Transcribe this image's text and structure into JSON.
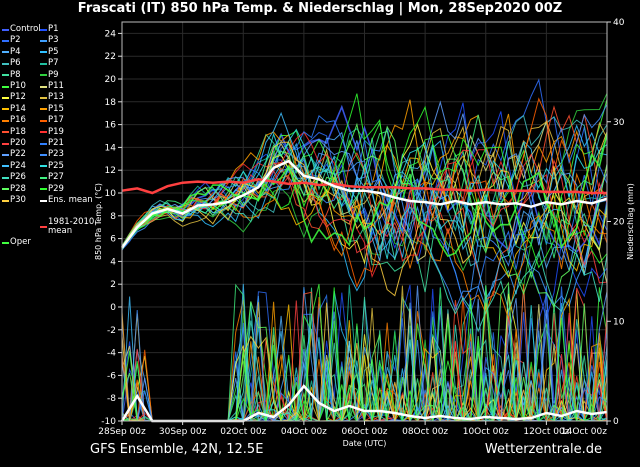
{
  "title": "Frascati  (IT)  850 hPa Temp. & Niederschlag | Mon, 28Sep2020 00Z",
  "footer": {
    "left": "GFS Ensemble, 42N, 12.5E",
    "right": "Wetterzentrale.de"
  },
  "legend": [
    {
      "label": "Control",
      "color": "#4060ff"
    },
    {
      "label": "P1",
      "color": "#2050ff"
    },
    {
      "label": "P2",
      "color": "#3070ff"
    },
    {
      "label": "P3",
      "color": "#40a0ff"
    },
    {
      "label": "P4",
      "color": "#50b0ff"
    },
    {
      "label": "P5",
      "color": "#30c0ff"
    },
    {
      "label": "P6",
      "color": "#40c0c0"
    },
    {
      "label": "P7",
      "color": "#20c0a0"
    },
    {
      "label": "P8",
      "color": "#40e0a0"
    },
    {
      "label": "P9",
      "color": "#30d040"
    },
    {
      "label": "P10",
      "color": "#40ff40"
    },
    {
      "label": "P11",
      "color": "#e0e080"
    },
    {
      "label": "P12",
      "color": "#ffff40"
    },
    {
      "label": "P13",
      "color": "#e0c040"
    },
    {
      "label": "P14",
      "color": "#ffc000"
    },
    {
      "label": "P15",
      "color": "#ffa000"
    },
    {
      "label": "P16",
      "color": "#ff8000"
    },
    {
      "label": "P17",
      "color": "#ff6000"
    },
    {
      "label": "P18",
      "color": "#ff5030"
    },
    {
      "label": "P19",
      "color": "#ff3030"
    },
    {
      "label": "P20",
      "color": "#ff4040"
    },
    {
      "label": "P21",
      "color": "#3080ff"
    },
    {
      "label": "P22",
      "color": "#60a0ff"
    },
    {
      "label": "P23",
      "color": "#4090ff"
    },
    {
      "label": "P24",
      "color": "#40c0ff"
    },
    {
      "label": "P25",
      "color": "#30e0e0"
    },
    {
      "label": "P26",
      "color": "#40e0c0"
    },
    {
      "label": "P27",
      "color": "#40f080"
    },
    {
      "label": "P28",
      "color": "#60ff60"
    },
    {
      "label": "P29",
      "color": "#30ff30"
    },
    {
      "label": "P30",
      "color": "#ffd040"
    },
    {
      "label": "Ens. mean",
      "color": "#ffffff"
    },
    {
      "label": "1981-2010\nmean",
      "color": "#ff4040"
    },
    {
      "label": "Oper",
      "color": "#40ff40"
    }
  ],
  "chart_data": {
    "type": "line",
    "xlabel": "Date (UTC)",
    "ylabel": "850 hPa Temp. (°C)",
    "y2label": "Niederschlag (mm)",
    "ylim": [
      -10,
      25
    ],
    "y2lim": [
      0,
      40
    ],
    "yticks": [
      -10,
      -8,
      -6,
      -4,
      -2,
      0,
      2,
      4,
      6,
      8,
      10,
      12,
      14,
      16,
      18,
      20,
      22,
      24
    ],
    "y2ticks": [
      0,
      10,
      20,
      30,
      40
    ],
    "xlim_hours": [
      0,
      384
    ],
    "xticks": [
      {
        "h": 0,
        "label": "28Sep 00z"
      },
      {
        "h": 48,
        "label": "30Sep 00z"
      },
      {
        "h": 96,
        "label": "02Oct 00z"
      },
      {
        "h": 144,
        "label": "04Oct 00z"
      },
      {
        "h": 192,
        "label": "06Oct 00z"
      },
      {
        "h": 240,
        "label": "08Oct 00z"
      },
      {
        "h": 288,
        "label": "10Oct 00z"
      },
      {
        "h": 336,
        "label": "12Oct 00z"
      },
      {
        "h": 384,
        "label": "14Oct 00z"
      }
    ],
    "grid": true,
    "ens_mean_temp": {
      "name": "Ens. mean",
      "color": "#ffffff",
      "x": [
        0,
        12,
        24,
        36,
        48,
        60,
        72,
        84,
        96,
        108,
        120,
        132,
        144,
        156,
        168,
        180,
        192,
        204,
        216,
        228,
        240,
        252,
        264,
        276,
        288,
        300,
        312,
        324,
        336,
        348,
        360,
        372,
        384
      ],
      "y": [
        5.2,
        7.0,
        8.2,
        8.6,
        8.2,
        8.9,
        9.0,
        9.2,
        9.8,
        10.5,
        12.2,
        12.8,
        11.5,
        11.2,
        10.6,
        10.2,
        10.2,
        10.0,
        9.6,
        9.3,
        9.2,
        9.0,
        9.3,
        9.0,
        9.2,
        9.0,
        9.1,
        8.8,
        9.2,
        9.0,
        9.3,
        9.1,
        9.5
      ]
    },
    "climate_mean": {
      "name": "1981-2010\nmean",
      "color": "#ff4040",
      "x": [
        0,
        12,
        24,
        36,
        48,
        60,
        72,
        84,
        96,
        108,
        120,
        132,
        144,
        156,
        168,
        180,
        192,
        204,
        216,
        228,
        240,
        252,
        264,
        276,
        288,
        300,
        312,
        324,
        336,
        348,
        360,
        372,
        384
      ],
      "y": [
        10.2,
        10.4,
        10.0,
        10.6,
        10.9,
        11.0,
        10.9,
        11.0,
        10.9,
        11.2,
        11.0,
        10.8,
        10.9,
        10.7,
        10.8,
        10.6,
        10.5,
        10.5,
        10.5,
        10.4,
        10.4,
        10.3,
        10.3,
        10.2,
        10.3,
        10.2,
        10.2,
        10.2,
        10.1,
        10.1,
        10.1,
        10.0,
        10.0
      ]
    },
    "ens_mean_precip_mm": {
      "name": "Ens. mean",
      "color": "#ffffff",
      "x": [
        0,
        12,
        24,
        36,
        48,
        60,
        72,
        84,
        96,
        108,
        120,
        132,
        144,
        156,
        168,
        180,
        192,
        204,
        216,
        228,
        240,
        252,
        264,
        276,
        288,
        300,
        312,
        324,
        336,
        348,
        360,
        372,
        384
      ],
      "y": [
        0,
        2.5,
        0,
        0,
        0,
        0,
        0,
        0,
        0,
        0.8,
        0.4,
        1.6,
        3.5,
        1.8,
        1.0,
        1.5,
        1.0,
        1.0,
        0.8,
        0.5,
        0.3,
        0.5,
        0.3,
        0.2,
        0.4,
        0.3,
        0.2,
        0.3,
        0.8,
        0.5,
        1.0,
        0.7,
        0.9
      ]
    }
  }
}
